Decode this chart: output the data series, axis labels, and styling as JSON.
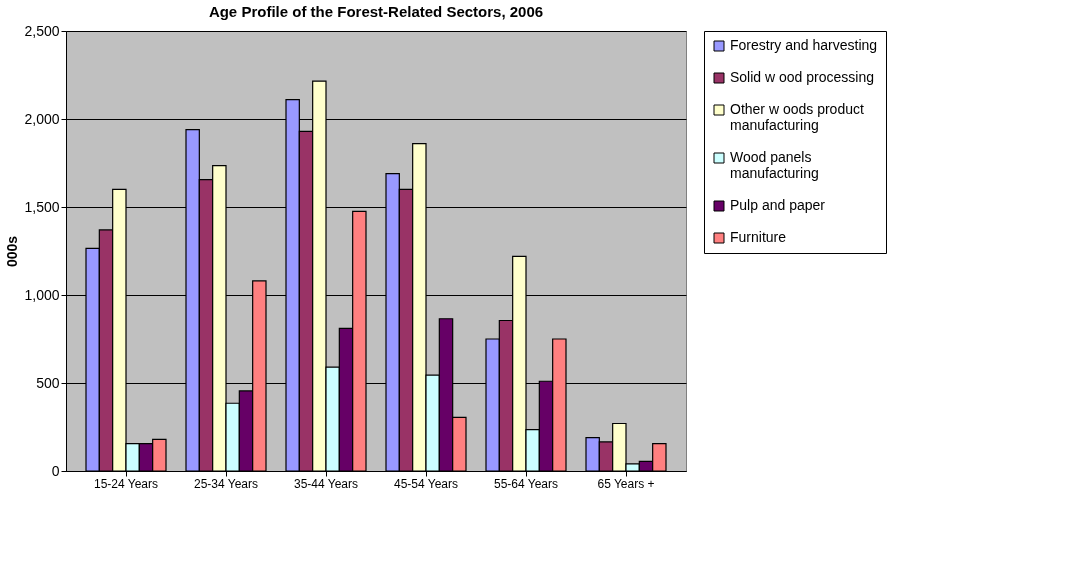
{
  "chart_data": {
    "type": "bar",
    "title": "Age Profile of the Forest-Related Sectors, 2006",
    "ylabel": "000s",
    "categories": [
      "15-24 Years",
      "25-34 Years",
      "35-44 Years",
      "45-54 Years",
      "55-64 Years",
      "65 Years +"
    ],
    "series": [
      {
        "name": "Forestry and harvesting",
        "color": "#9999ff",
        "values": [
          1265,
          1940,
          2110,
          1690,
          750,
          190
        ]
      },
      {
        "name": "Solid w ood processing",
        "color": "#993366",
        "values": [
          1370,
          1655,
          1930,
          1600,
          855,
          165
        ]
      },
      {
        "name": "Other w oods product manufacturing",
        "color": "#ffffcc",
        "values": [
          1600,
          1735,
          2215,
          1860,
          1220,
          270
        ]
      },
      {
        "name": "Wood panels manufacturing",
        "color": "#ccffff",
        "values": [
          155,
          385,
          590,
          545,
          235,
          40
        ]
      },
      {
        "name": "Pulp and paper",
        "color": "#660066",
        "values": [
          155,
          455,
          810,
          865,
          510,
          55
        ]
      },
      {
        "name": "Furniture",
        "color": "#ff8080",
        "values": [
          180,
          1080,
          1475,
          305,
          750,
          155
        ]
      }
    ],
    "ylim": [
      0,
      2500
    ],
    "yticks": [
      0,
      500,
      {
        "value": 1000,
        "label": "1,000"
      },
      {
        "value": 1500,
        "label": "1,500"
      },
      {
        "value": 2000,
        "label": "2,000"
      },
      {
        "value": 2500,
        "label": "2,500"
      }
    ],
    "grid": "y",
    "legend": "right"
  }
}
